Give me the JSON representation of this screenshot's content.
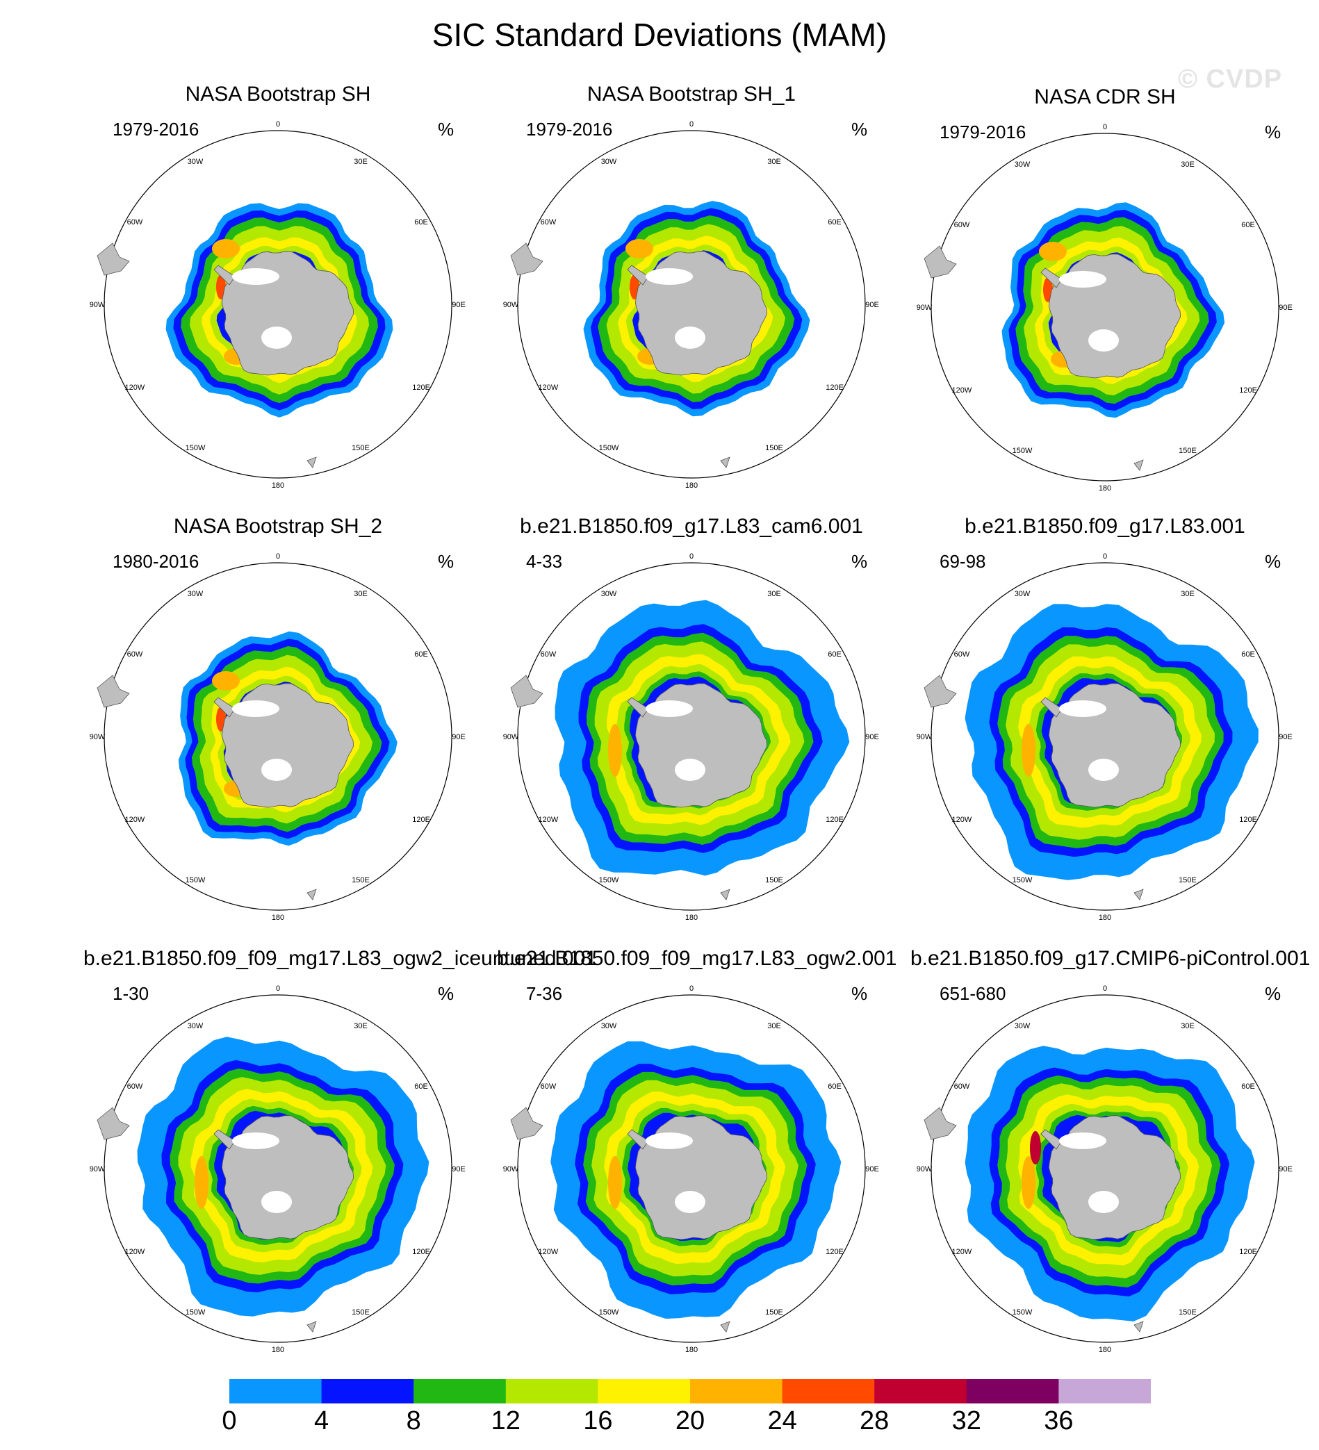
{
  "title": "SIC Standard Deviations (MAM)",
  "watermark": "© CVDP",
  "units": "%",
  "longitude_labels": [
    "0",
    "30E",
    "60E",
    "90E",
    "120E",
    "150E",
    "180",
    "150W",
    "120W",
    "90W",
    "60W",
    "30W"
  ],
  "panels": [
    {
      "title": "NASA Bootstrap SH",
      "years": "1979-2016",
      "pattern": "obs"
    },
    {
      "title": "NASA Bootstrap SH_1",
      "years": "1979-2016",
      "pattern": "obs"
    },
    {
      "title": "NASA CDR SH",
      "years": "1979-2016",
      "pattern": "obs"
    },
    {
      "title": "NASA Bootstrap SH_2",
      "years": "1980-2016",
      "pattern": "obs"
    },
    {
      "title": "b.e21.B1850.f09_g17.L83_cam6.001",
      "years": "4-33",
      "pattern": "model"
    },
    {
      "title": "b.e21.B1850.f09_g17.L83.001",
      "years": "69-98",
      "pattern": "model"
    },
    {
      "title": "b.e21.B1850.f09_f09_mg17.L83_ogw2_iceuntuned.001",
      "years": "1-30",
      "pattern": "model"
    },
    {
      "title": "b.e21.B1850.f09_f09_mg17.L83_ogw2.001",
      "years": "7-36",
      "pattern": "model"
    },
    {
      "title": "b.e21.B1850.f09_g17.CMIP6-piControl.001",
      "years": "651-680",
      "pattern": "model"
    }
  ],
  "colorbar": {
    "labels": [
      "0",
      "4",
      "8",
      "12",
      "16",
      "20",
      "24",
      "28",
      "32",
      "36"
    ],
    "colors": [
      "#0a96ff",
      "#0514ff",
      "#22b814",
      "#b5e800",
      "#fff200",
      "#ffb300",
      "#ff4a00",
      "#bf0030",
      "#7e0061",
      "#c6a7d8"
    ]
  },
  "colors": {
    "land": "#bebebe",
    "ice_shelf": "#ffffff",
    "map_border": "#000000"
  }
}
